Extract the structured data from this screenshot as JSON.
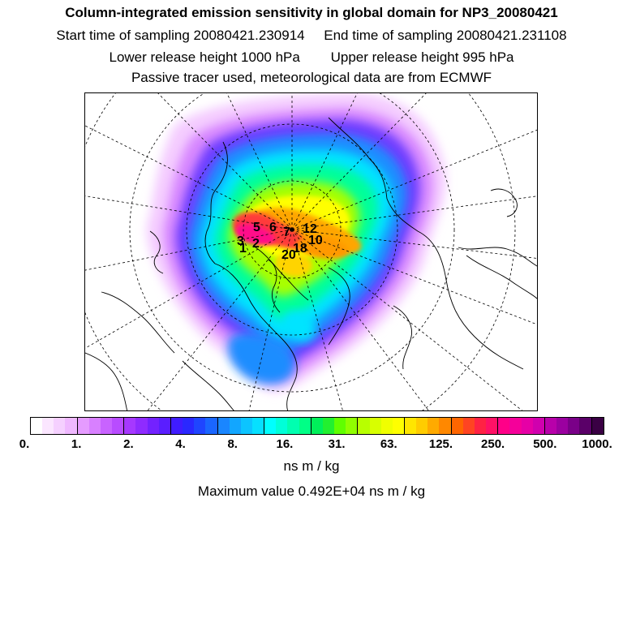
{
  "header": {
    "title": "Column-integrated emission sensitivity in global domain for NP3_20080421",
    "start_label": "Start time of sampling 20080421.230914",
    "end_label": "End time of sampling 20080421.231108",
    "lower_label": "Lower release height 1000 hPa",
    "upper_label": "Upper release height  995 hPa",
    "tracer_label": "Passive tracer used, meteorological data are from ECMWF"
  },
  "map": {
    "projection": "north polar stereographic",
    "point_labels": [
      "5",
      "6",
      "7",
      "12",
      "3",
      "2",
      "1",
      "20",
      "18",
      "10"
    ]
  },
  "colorbar": {
    "colors": [
      "#ffffff",
      "#fbe6ff",
      "#f5d0ff",
      "#efb8ff",
      "#e59bff",
      "#d880ff",
      "#c863ff",
      "#b84cff",
      "#a638ff",
      "#8f2bff",
      "#7322ff",
      "#5a1eff",
      "#401cff",
      "#2a28ff",
      "#1f45ff",
      "#1a66ff",
      "#1a86ff",
      "#12a6ff",
      "#0cc4ff",
      "#06e0ff",
      "#00ffff",
      "#00ffd8",
      "#00ffb0",
      "#00ff86",
      "#00f05a",
      "#22f030",
      "#60ff00",
      "#90ff00",
      "#b8ff00",
      "#d8ff00",
      "#f0ff00",
      "#ffff00",
      "#ffe600",
      "#ffcc00",
      "#ffaa00",
      "#ff8800",
      "#ff6600",
      "#ff4422",
      "#ff2244",
      "#ff1166",
      "#ff0088",
      "#f5009a",
      "#e600a6",
      "#d000ae",
      "#b800aa",
      "#9b00a0",
      "#7a0088",
      "#5a0068",
      "#3a0044"
    ],
    "tick_labels": [
      "0.",
      "1.",
      "2.",
      "4.",
      "8.",
      "16.",
      "31.",
      "63.",
      "125.",
      "250.",
      "500.",
      "1000."
    ],
    "unit": "ns m / kg"
  },
  "footer": {
    "max_label": "Maximum value  0.492E+04 ns m / kg"
  }
}
